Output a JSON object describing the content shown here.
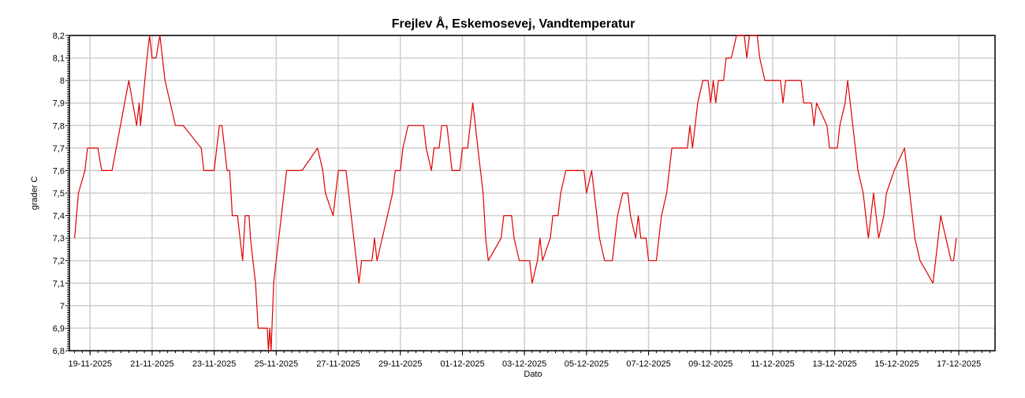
{
  "chart_data": {
    "type": "line",
    "title": "Frejlev Å, Eskemosevej, Vandtemperatur",
    "xlabel": "Dato",
    "ylabel": "grader C",
    "x_tick_labels": [
      "19-11-2025",
      "21-11-2025",
      "23-11-2025",
      "25-11-2025",
      "27-11-2025",
      "29-11-2025",
      "01-12-2025",
      "03-12-2025",
      "05-12-2025",
      "07-12-2025",
      "09-12-2025",
      "11-12-2025",
      "13-12-2025",
      "15-12-2025",
      "17-12-2025"
    ],
    "y_tick_labels": [
      "6,8",
      "6,9",
      "7",
      "7,1",
      "7,2",
      "7,3",
      "7,4",
      "7,5",
      "7,6",
      "7,7",
      "7,8",
      "7,9",
      "8",
      "8,1",
      "8,2"
    ],
    "xlim": [
      "2025-11-18 08:00",
      "2025-12-18 04:00"
    ],
    "ylim": [
      6.8,
      8.2
    ],
    "grid": true,
    "series": [
      {
        "color": "#e00000",
        "points": [
          [
            "2025-11-18 12:00",
            7.3
          ],
          [
            "2025-11-18 15:00",
            7.5
          ],
          [
            "2025-11-18 20:00",
            7.6
          ],
          [
            "2025-11-18 22:00",
            7.7
          ],
          [
            "2025-11-19 06:00",
            7.7
          ],
          [
            "2025-11-19 09:00",
            7.6
          ],
          [
            "2025-11-19 17:00",
            7.6
          ],
          [
            "2025-11-20 06:00",
            8.0
          ],
          [
            "2025-11-20 12:00",
            7.8
          ],
          [
            "2025-11-20 14:00",
            7.9
          ],
          [
            "2025-11-20 15:00",
            7.8
          ],
          [
            "2025-11-20 20:00",
            8.1
          ],
          [
            "2025-11-20 22:00",
            8.2
          ],
          [
            "2025-11-21 00:00",
            8.1
          ],
          [
            "2025-11-21 03:00",
            8.1
          ],
          [
            "2025-11-21 06:00",
            8.2
          ],
          [
            "2025-11-21 10:00",
            8.0
          ],
          [
            "2025-11-21 18:00",
            7.8
          ],
          [
            "2025-11-22 00:00",
            7.8
          ],
          [
            "2025-11-22 14:00",
            7.7
          ],
          [
            "2025-11-22 16:00",
            7.6
          ],
          [
            "2025-11-23 00:00",
            7.6
          ],
          [
            "2025-11-23 02:00",
            7.7
          ],
          [
            "2025-11-23 04:00",
            7.8
          ],
          [
            "2025-11-23 06:00",
            7.8
          ],
          [
            "2025-11-23 08:00",
            7.7
          ],
          [
            "2025-11-23 10:00",
            7.6
          ],
          [
            "2025-11-23 12:00",
            7.6
          ],
          [
            "2025-11-23 13:00",
            7.5
          ],
          [
            "2025-11-23 14:00",
            7.4
          ],
          [
            "2025-11-23 18:00",
            7.4
          ],
          [
            "2025-11-23 20:00",
            7.3
          ],
          [
            "2025-11-23 22:00",
            7.2
          ],
          [
            "2025-11-24 00:00",
            7.4
          ],
          [
            "2025-11-24 03:00",
            7.4
          ],
          [
            "2025-11-24 04:00",
            7.3
          ],
          [
            "2025-11-24 06:00",
            7.2
          ],
          [
            "2025-11-24 08:00",
            7.1
          ],
          [
            "2025-11-24 09:00",
            7.0
          ],
          [
            "2025-11-24 10:00",
            6.9
          ],
          [
            "2025-11-24 17:00",
            6.9
          ],
          [
            "2025-11-24 18:00",
            6.8
          ],
          [
            "2025-11-24 19:00",
            6.9
          ],
          [
            "2025-11-24 20:00",
            6.8
          ],
          [
            "2025-11-24 22:00",
            7.1
          ],
          [
            "2025-11-25 00:00",
            7.2
          ],
          [
            "2025-11-25 02:00",
            7.3
          ],
          [
            "2025-11-25 04:00",
            7.4
          ],
          [
            "2025-11-25 06:00",
            7.5
          ],
          [
            "2025-11-25 08:00",
            7.6
          ],
          [
            "2025-11-25 12:00",
            7.6
          ],
          [
            "2025-11-25 20:00",
            7.6
          ],
          [
            "2025-11-26 08:00",
            7.7
          ],
          [
            "2025-11-26 12:00",
            7.6
          ],
          [
            "2025-11-26 14:00",
            7.5
          ],
          [
            "2025-11-26 20:00",
            7.4
          ],
          [
            "2025-11-27 00:00",
            7.6
          ],
          [
            "2025-11-27 06:00",
            7.6
          ],
          [
            "2025-11-27 10:00",
            7.4
          ],
          [
            "2025-11-27 12:00",
            7.3
          ],
          [
            "2025-11-27 14:00",
            7.2
          ],
          [
            "2025-11-27 16:00",
            7.1
          ],
          [
            "2025-11-27 18:00",
            7.2
          ],
          [
            "2025-11-28 02:00",
            7.2
          ],
          [
            "2025-11-28 04:00",
            7.3
          ],
          [
            "2025-11-28 06:00",
            7.2
          ],
          [
            "2025-11-28 10:00",
            7.3
          ],
          [
            "2025-11-28 14:00",
            7.4
          ],
          [
            "2025-11-28 18:00",
            7.5
          ],
          [
            "2025-11-28 20:00",
            7.6
          ],
          [
            "2025-11-29 00:00",
            7.6
          ],
          [
            "2025-11-29 02:00",
            7.7
          ],
          [
            "2025-11-29 06:00",
            7.8
          ],
          [
            "2025-11-29 18:00",
            7.8
          ],
          [
            "2025-11-29 20:00",
            7.7
          ],
          [
            "2025-11-30 00:00",
            7.6
          ],
          [
            "2025-11-30 02:00",
            7.7
          ],
          [
            "2025-11-30 06:00",
            7.7
          ],
          [
            "2025-11-30 08:00",
            7.8
          ],
          [
            "2025-11-30 12:00",
            7.8
          ],
          [
            "2025-11-30 14:00",
            7.7
          ],
          [
            "2025-11-30 16:00",
            7.6
          ],
          [
            "2025-11-30 22:00",
            7.6
          ],
          [
            "2025-12-01 00:00",
            7.7
          ],
          [
            "2025-12-01 04:00",
            7.7
          ],
          [
            "2025-12-01 06:00",
            7.8
          ],
          [
            "2025-12-01 08:00",
            7.9
          ],
          [
            "2025-12-01 10:00",
            7.8
          ],
          [
            "2025-12-01 12:00",
            7.7
          ],
          [
            "2025-12-01 14:00",
            7.6
          ],
          [
            "2025-12-01 16:00",
            7.5
          ],
          [
            "2025-12-01 18:00",
            7.3
          ],
          [
            "2025-12-01 20:00",
            7.2
          ],
          [
            "2025-12-02 06:00",
            7.3
          ],
          [
            "2025-12-02 08:00",
            7.4
          ],
          [
            "2025-12-02 14:00",
            7.4
          ],
          [
            "2025-12-02 16:00",
            7.3
          ],
          [
            "2025-12-02 20:00",
            7.2
          ],
          [
            "2025-12-03 04:00",
            7.2
          ],
          [
            "2025-12-03 06:00",
            7.1
          ],
          [
            "2025-12-03 10:00",
            7.2
          ],
          [
            "2025-12-03 12:00",
            7.3
          ],
          [
            "2025-12-03 14:00",
            7.2
          ],
          [
            "2025-12-03 20:00",
            7.3
          ],
          [
            "2025-12-03 22:00",
            7.4
          ],
          [
            "2025-12-04 02:00",
            7.4
          ],
          [
            "2025-12-04 04:00",
            7.5
          ],
          [
            "2025-12-04 08:00",
            7.6
          ],
          [
            "2025-12-04 22:00",
            7.6
          ],
          [
            "2025-12-05 00:00",
            7.5
          ],
          [
            "2025-12-05 04:00",
            7.6
          ],
          [
            "2025-12-05 06:00",
            7.5
          ],
          [
            "2025-12-05 08:00",
            7.4
          ],
          [
            "2025-12-05 10:00",
            7.3
          ],
          [
            "2025-12-05 14:00",
            7.2
          ],
          [
            "2025-12-05 20:00",
            7.2
          ],
          [
            "2025-12-05 22:00",
            7.3
          ],
          [
            "2025-12-06 00:00",
            7.4
          ],
          [
            "2025-12-06 04:00",
            7.5
          ],
          [
            "2025-12-06 08:00",
            7.5
          ],
          [
            "2025-12-06 10:00",
            7.4
          ],
          [
            "2025-12-06 14:00",
            7.3
          ],
          [
            "2025-12-06 16:00",
            7.4
          ],
          [
            "2025-12-06 18:00",
            7.3
          ],
          [
            "2025-12-06 22:00",
            7.3
          ],
          [
            "2025-12-07 00:00",
            7.2
          ],
          [
            "2025-12-07 06:00",
            7.2
          ],
          [
            "2025-12-07 08:00",
            7.3
          ],
          [
            "2025-12-07 10:00",
            7.4
          ],
          [
            "2025-12-07 14:00",
            7.5
          ],
          [
            "2025-12-07 16:00",
            7.6
          ],
          [
            "2025-12-07 18:00",
            7.7
          ],
          [
            "2025-12-08 06:00",
            7.7
          ],
          [
            "2025-12-08 08:00",
            7.8
          ],
          [
            "2025-12-08 10:00",
            7.7
          ],
          [
            "2025-12-08 12:00",
            7.8
          ],
          [
            "2025-12-08 14:00",
            7.9
          ],
          [
            "2025-12-08 18:00",
            8.0
          ],
          [
            "2025-12-08 22:00",
            8.0
          ],
          [
            "2025-12-09 00:00",
            7.9
          ],
          [
            "2025-12-09 02:00",
            8.0
          ],
          [
            "2025-12-09 04:00",
            7.9
          ],
          [
            "2025-12-09 06:00",
            8.0
          ],
          [
            "2025-12-09 10:00",
            8.0
          ],
          [
            "2025-12-09 12:00",
            8.1
          ],
          [
            "2025-12-09 16:00",
            8.1
          ],
          [
            "2025-12-09 20:00",
            8.2
          ],
          [
            "2025-12-10 02:00",
            8.2
          ],
          [
            "2025-12-10 04:00",
            8.1
          ],
          [
            "2025-12-10 06:00",
            8.2
          ],
          [
            "2025-12-10 12:00",
            8.2
          ],
          [
            "2025-12-10 14:00",
            8.1
          ],
          [
            "2025-12-10 18:00",
            8.0
          ],
          [
            "2025-12-11 06:00",
            8.0
          ],
          [
            "2025-12-11 08:00",
            7.9
          ],
          [
            "2025-12-11 10:00",
            8.0
          ],
          [
            "2025-12-11 22:00",
            8.0
          ],
          [
            "2025-12-12 00:00",
            7.9
          ],
          [
            "2025-12-12 06:00",
            7.9
          ],
          [
            "2025-12-12 08:00",
            7.8
          ],
          [
            "2025-12-12 10:00",
            7.9
          ],
          [
            "2025-12-12 18:00",
            7.8
          ],
          [
            "2025-12-12 20:00",
            7.7
          ],
          [
            "2025-12-13 02:00",
            7.7
          ],
          [
            "2025-12-13 04:00",
            7.8
          ],
          [
            "2025-12-13 08:00",
            7.9
          ],
          [
            "2025-12-13 10:00",
            8.0
          ],
          [
            "2025-12-13 12:00",
            7.9
          ],
          [
            "2025-12-13 14:00",
            7.8
          ],
          [
            "2025-12-13 16:00",
            7.7
          ],
          [
            "2025-12-13 18:00",
            7.6
          ],
          [
            "2025-12-13 22:00",
            7.5
          ],
          [
            "2025-12-14 00:00",
            7.4
          ],
          [
            "2025-12-14 02:00",
            7.3
          ],
          [
            "2025-12-14 06:00",
            7.5
          ],
          [
            "2025-12-14 10:00",
            7.3
          ],
          [
            "2025-12-14 14:00",
            7.4
          ],
          [
            "2025-12-14 16:00",
            7.5
          ],
          [
            "2025-12-14 22:00",
            7.6
          ],
          [
            "2025-12-15 06:00",
            7.7
          ],
          [
            "2025-12-15 08:00",
            7.6
          ],
          [
            "2025-12-15 12:00",
            7.4
          ],
          [
            "2025-12-15 14:00",
            7.3
          ],
          [
            "2025-12-15 18:00",
            7.2
          ],
          [
            "2025-12-16 04:00",
            7.1
          ],
          [
            "2025-12-16 06:00",
            7.2
          ],
          [
            "2025-12-16 08:00",
            7.3
          ],
          [
            "2025-12-16 10:00",
            7.4
          ],
          [
            "2025-12-16 14:00",
            7.3
          ],
          [
            "2025-12-16 18:00",
            7.2
          ],
          [
            "2025-12-16 20:00",
            7.2
          ],
          [
            "2025-12-16 22:00",
            7.3
          ]
        ]
      }
    ]
  }
}
